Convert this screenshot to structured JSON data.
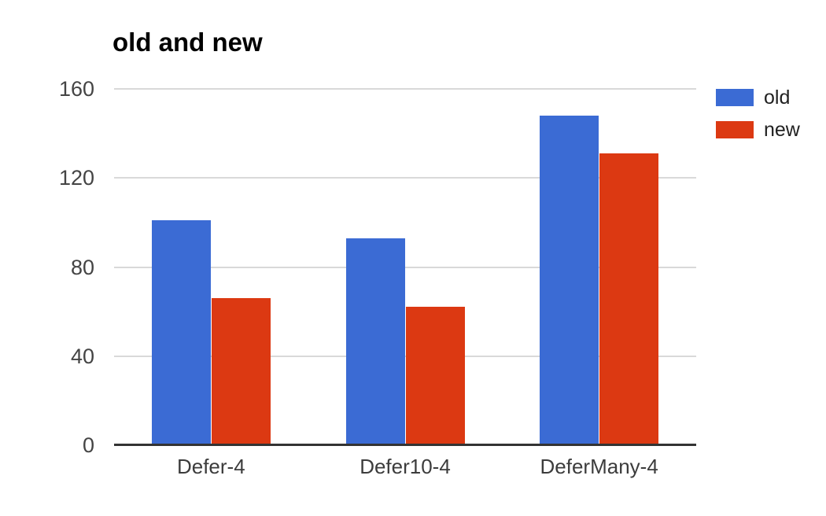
{
  "chart_data": {
    "type": "bar",
    "title": "old and new",
    "categories": [
      "Defer-4",
      "Defer10-4",
      "DeferMany-4"
    ],
    "series": [
      {
        "name": "old",
        "color": "#3b6bd4",
        "values": [
          101,
          93,
          148
        ]
      },
      {
        "name": "new",
        "color": "#dc3912",
        "values": [
          66,
          62,
          131
        ]
      }
    ],
    "xlabel": "",
    "ylabel": "",
    "ylim": [
      0,
      160
    ],
    "yticks": [
      0,
      40,
      80,
      120,
      160
    ],
    "grid": true,
    "legend_position": "right",
    "legend_labels": [
      "old",
      "new"
    ]
  },
  "style": {
    "background": "#ffffff",
    "title_color": "#000000",
    "gridline_color": "#d9d9d9",
    "axis_line_color": "#333333",
    "tick_label_color": "#444444",
    "category_label_color": "#3c3c3c",
    "legend_text_color": "#212121"
  }
}
